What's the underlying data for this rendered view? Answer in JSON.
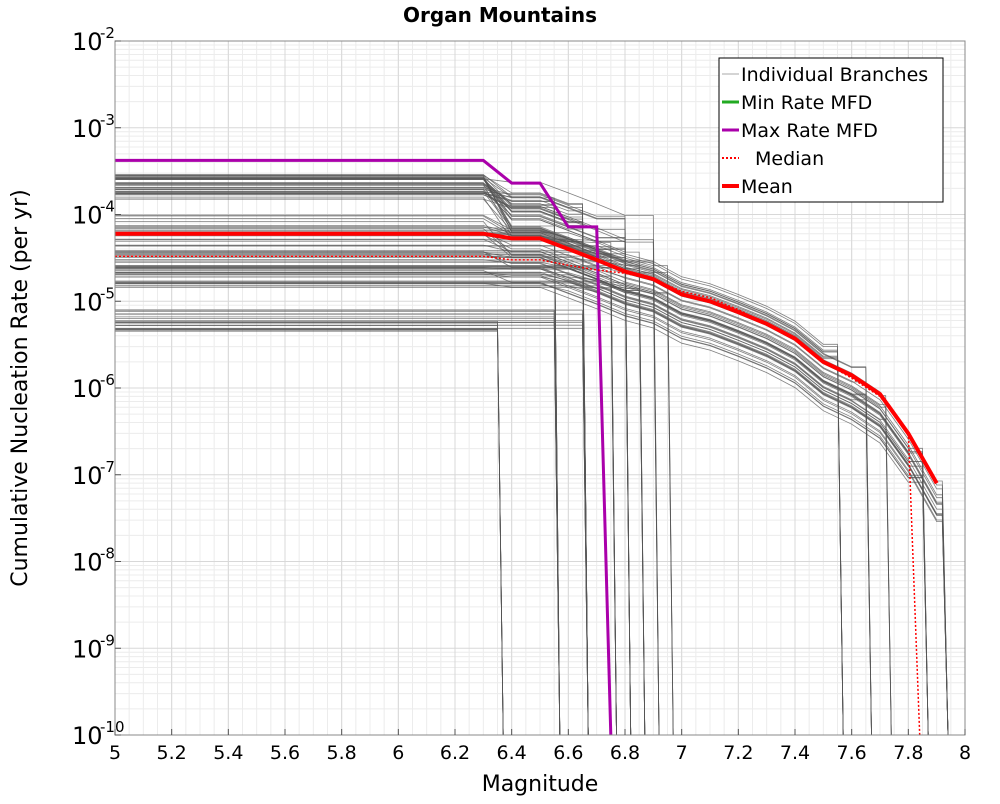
{
  "chart_data": {
    "type": "line",
    "title": "Organ Mountains",
    "xlabel": "Magnitude",
    "ylabel": "Cumulative Nucleation Rate (per yr)",
    "xlim": [
      5,
      8
    ],
    "ylim": [
      1e-10,
      0.01
    ],
    "yscale": "log",
    "grid": true,
    "legend_position": "top-right",
    "x_ticks": [
      5,
      5.2,
      5.4,
      5.6,
      5.8,
      6,
      6.2,
      6.4,
      6.6,
      6.8,
      7,
      7.2,
      7.4,
      7.6,
      7.8,
      8
    ],
    "x_tick_labels": [
      "5",
      "5.2",
      "5.4",
      "5.6",
      "5.8",
      "6",
      "6.2",
      "6.4",
      "6.6",
      "6.8",
      "7",
      "7.2",
      "7.4",
      "7.6",
      "7.8",
      "8"
    ],
    "y_ticks": [
      {
        "value": 0.01,
        "base": "10",
        "exp": "-2"
      },
      {
        "value": 0.001,
        "base": "10",
        "exp": "-3"
      },
      {
        "value": 0.0001,
        "base": "10",
        "exp": "-4"
      },
      {
        "value": 1e-05,
        "base": "10",
        "exp": "-5"
      },
      {
        "value": 1e-06,
        "base": "10",
        "exp": "-6"
      },
      {
        "value": 1e-07,
        "base": "10",
        "exp": "-7"
      },
      {
        "value": 1e-08,
        "base": "10",
        "exp": "-8"
      },
      {
        "value": 1e-09,
        "base": "10",
        "exp": "-9"
      },
      {
        "value": 1e-10,
        "base": "10",
        "exp": "-10"
      }
    ],
    "legend": [
      {
        "label": "Individual Branches",
        "color": "#aaaaaa",
        "style": "thin"
      },
      {
        "label": "Min Rate MFD",
        "color": "#22aa22",
        "style": "solid"
      },
      {
        "label": "Max Rate MFD",
        "color": "#aa00aa",
        "style": "solid"
      },
      {
        "label": "Median",
        "color": "#ff0000",
        "style": "dotted"
      },
      {
        "label": "Mean",
        "color": "#ff0000",
        "style": "thick"
      }
    ],
    "branch_color": "#555555",
    "series": [
      {
        "name": "Max Rate MFD",
        "color": "#aa00aa",
        "x": [
          5,
          6.3,
          6.4,
          6.5,
          6.6,
          6.7,
          6.75
        ],
        "y": [
          0.00042,
          0.00042,
          0.00023,
          0.00023,
          7.2e-05,
          7.2e-05,
          1e-10
        ]
      },
      {
        "name": "Median",
        "color": "#ff0000",
        "x": [
          5,
          6.3,
          6.4,
          6.5,
          6.6,
          6.7,
          6.8,
          6.9,
          7,
          7.1,
          7.2,
          7.3,
          7.4,
          7.5,
          7.6,
          7.7,
          7.8,
          7.84
        ],
        "y": [
          3.3e-05,
          3.3e-05,
          3e-05,
          3e-05,
          2.6e-05,
          2.3e-05,
          2.1e-05,
          1.8e-05,
          1.3e-05,
          1.1e-05,
          8e-06,
          5.5e-06,
          3.8e-06,
          2e-06,
          1.3e-06,
          8e-07,
          3e-07,
          1e-10
        ]
      },
      {
        "name": "Mean",
        "color": "#ff0000",
        "x": [
          5,
          6.3,
          6.4,
          6.5,
          6.6,
          6.7,
          6.8,
          6.9,
          7,
          7.1,
          7.2,
          7.3,
          7.4,
          7.5,
          7.6,
          7.7,
          7.8,
          7.9
        ],
        "y": [
          6e-05,
          6e-05,
          5.3e-05,
          5.3e-05,
          4e-05,
          3e-05,
          2.2e-05,
          1.8e-05,
          1.2e-05,
          1e-05,
          7.5e-06,
          5.5e-06,
          3.7e-06,
          2e-06,
          1.4e-06,
          8.5e-07,
          3e-07,
          8e-08
        ]
      }
    ],
    "branch_bands": [
      {
        "count": 40,
        "plateau_range": [
          0.00015,
          0.00029
        ],
        "cutoffs": [
          6.55,
          6.65,
          6.8,
          6.9
        ]
      },
      {
        "count": 40,
        "plateau_range": [
          2e-05,
          0.0001
        ],
        "cutoffs": [
          6.75,
          6.85,
          6.95,
          7.55,
          7.65,
          7.72
        ]
      },
      {
        "count": 25,
        "plateau_range": [
          1.4e-05,
          2.6e-05
        ],
        "cutoffs": [
          7.85,
          7.92
        ]
      },
      {
        "count": 20,
        "plateau_range": [
          4.5e-06,
          8e-06
        ],
        "cutoffs": [
          6.35,
          6.55,
          6.65
        ]
      }
    ]
  }
}
